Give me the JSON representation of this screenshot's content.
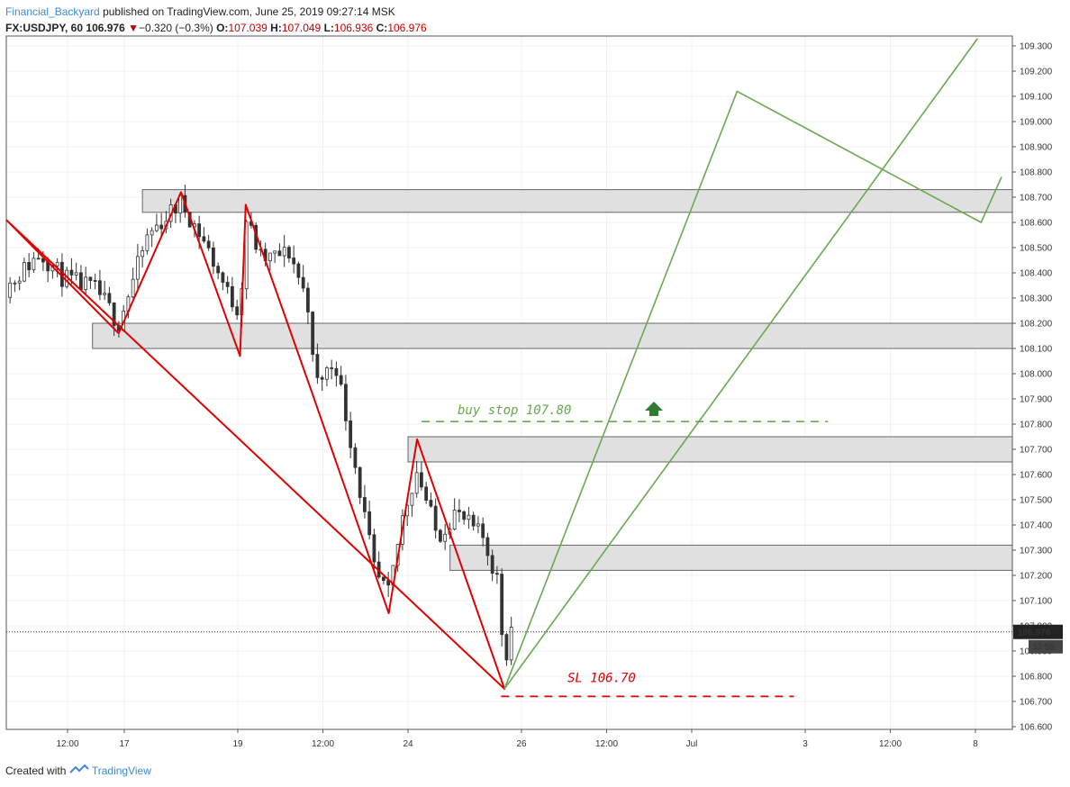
{
  "header": {
    "author": "Financial_Backyard",
    "published": "published on TradingView.com, June 25, 2019 09:27:14 MSK",
    "symbol": "FX:USDJPY, 60",
    "last": "106.976",
    "change": "−0.320 (−0.3%)",
    "o_label": "O:",
    "o": "107.039",
    "h_label": "H:",
    "h": "107.049",
    "l_label": "L:",
    "l": "106.936",
    "c_label": "C:",
    "c": "106.976"
  },
  "footer": {
    "created": "Created with",
    "brand": "TradingView"
  },
  "colors": {
    "bear": "#e00000",
    "bull": "#6aa84f",
    "zone_fill": "#e0e0e0",
    "zone_stroke": "#666666",
    "candle": "#333333",
    "arrow": "#2e7d32"
  },
  "chart_data": {
    "type": "line",
    "title": "",
    "ylim": [
      106.6,
      109.3
    ],
    "y_ticks": [
      "106.600",
      "106.700",
      "106.800",
      "106.900",
      "107.000",
      "107.100",
      "107.200",
      "107.300",
      "107.400",
      "107.500",
      "107.600",
      "107.700",
      "107.800",
      "107.900",
      "108.000",
      "108.100",
      "108.200",
      "108.300",
      "108.400",
      "108.500",
      "108.600",
      "108.700",
      "108.800",
      "108.900",
      "109.000",
      "109.100",
      "109.200",
      "109.300"
    ],
    "x_ticks": [
      {
        "label": "12:00",
        "t": 0.59
      },
      {
        "label": "17",
        "t": 1.09
      },
      {
        "label": "19",
        "t": 2.09
      },
      {
        "label": "12:00",
        "t": 2.84
      },
      {
        "label": "24",
        "t": 3.59
      },
      {
        "label": "26",
        "t": 4.59
      },
      {
        "label": "12:00",
        "t": 5.34
      },
      {
        "label": "Jul",
        "t": 6.09
      },
      {
        "label": "3",
        "t": 7.09
      },
      {
        "label": "12:00",
        "t": 7.84
      },
      {
        "label": "8",
        "t": 8.59
      }
    ],
    "x_range": [
      0,
      8.7
    ],
    "price_label": "106.976",
    "countdown": "32:59",
    "price_line": 106.976,
    "zones": [
      {
        "t0": 1.25,
        "y_top": 108.73,
        "y_bot": 108.64
      },
      {
        "t0": 0.81,
        "y_top": 108.2,
        "y_bot": 108.1
      },
      {
        "t0": 3.59,
        "y_top": 107.75,
        "y_bot": 107.65
      },
      {
        "t0": 3.96,
        "y_top": 107.32,
        "y_bot": 107.22
      }
    ],
    "series": [
      {
        "style": "bear",
        "points": [
          [
            0.05,
            108.61
          ],
          [
            1.04,
            108.16
          ]
        ]
      },
      {
        "style": "bear",
        "points": [
          [
            1.04,
            108.16
          ],
          [
            1.59,
            108.72
          ],
          [
            2.11,
            108.07
          ],
          [
            2.16,
            108.67
          ],
          [
            2.74,
            107.93
          ],
          [
            3.42,
            107.05
          ],
          [
            3.67,
            107.74
          ],
          [
            4.44,
            106.75
          ],
          [
            0.05,
            108.61
          ]
        ]
      },
      {
        "style": "bull",
        "points": [
          [
            4.44,
            106.75
          ],
          [
            6.49,
            109.12
          ],
          [
            8.64,
            108.6
          ],
          [
            8.82,
            108.78
          ]
        ]
      },
      {
        "style": "bull",
        "points": [
          [
            4.44,
            106.75
          ],
          [
            8.61,
            109.33
          ]
        ]
      }
    ],
    "candles_hint": "OHLC candles from 12:00 (15 Jun) to 25 Jun",
    "buy_stop": {
      "label": "buy stop 107.80",
      "price": 107.81,
      "t0": 3.71,
      "t1": 7.29
    },
    "stop_loss": {
      "label": "SL 106.70",
      "price": 106.72,
      "t0": 4.41,
      "t1": 6.99
    }
  }
}
